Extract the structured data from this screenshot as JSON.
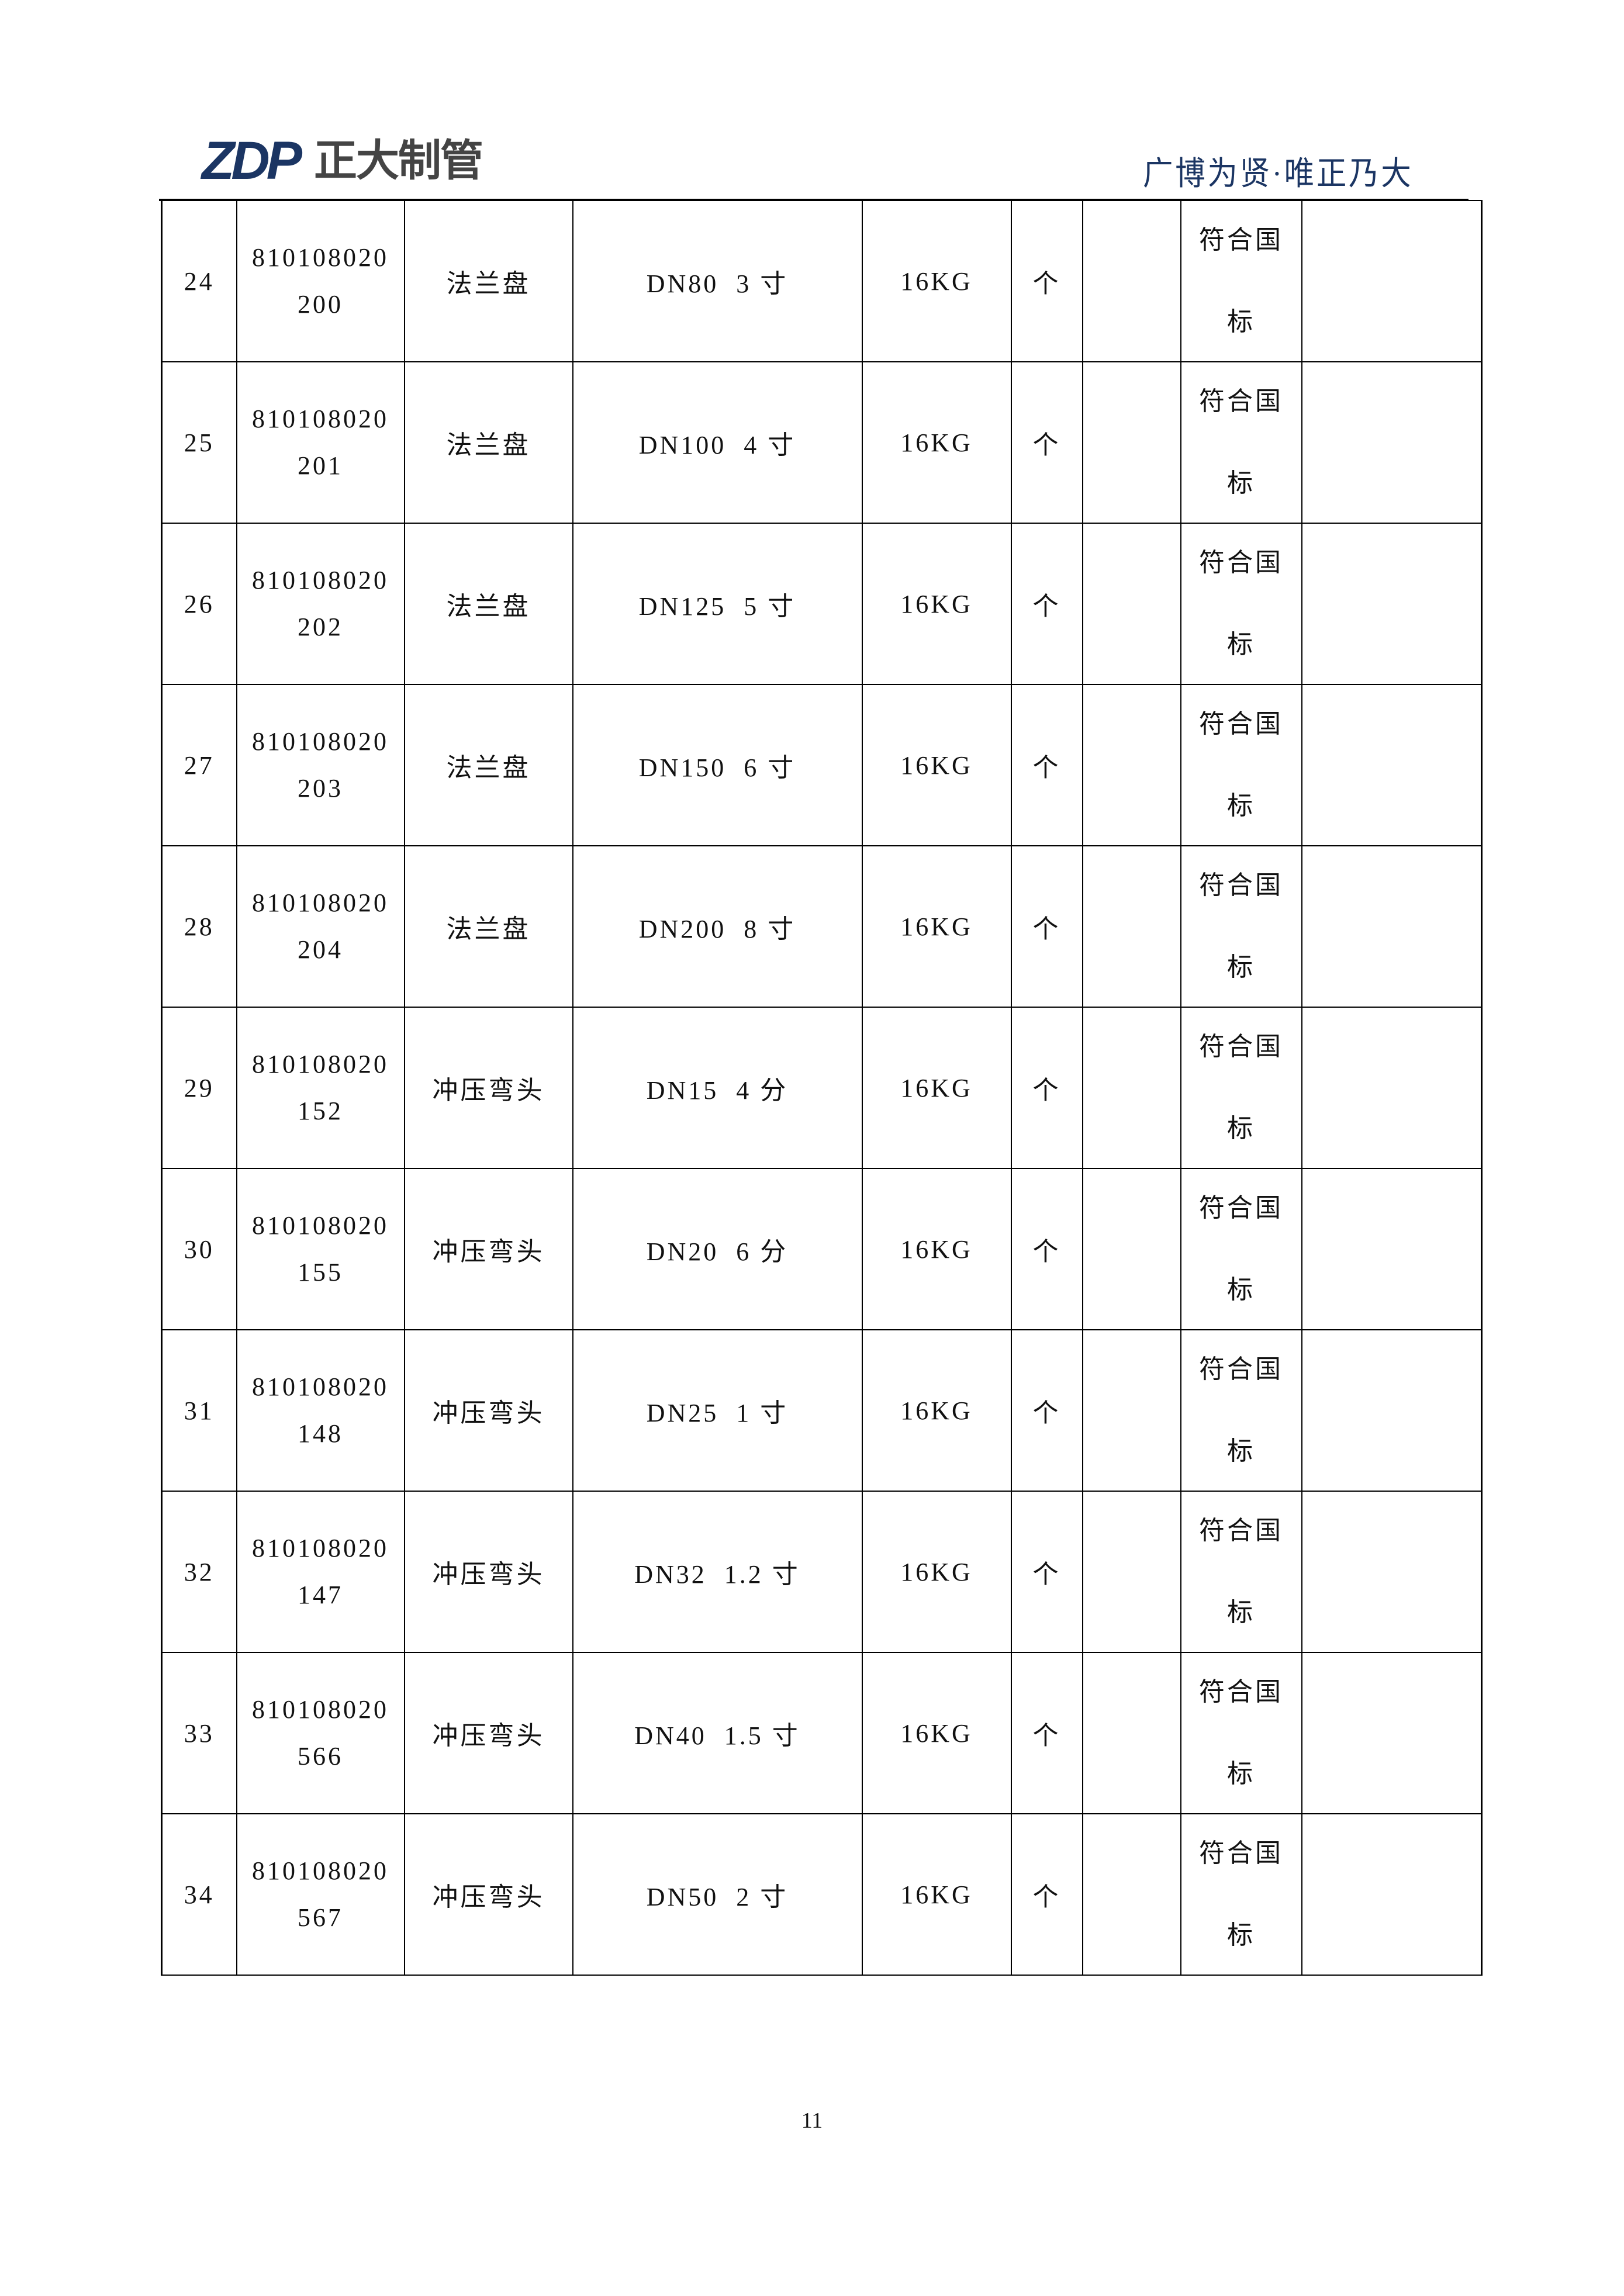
{
  "header": {
    "logo_mark": "ZDP",
    "logo_text": "正大制管",
    "slogan": "广博为贤·唯正乃大",
    "brand_color": "#1b3563"
  },
  "table": {
    "rows": [
      {
        "no": "24",
        "code_1": "810108020",
        "code_2": "200",
        "name": "法兰盘",
        "spec": "DN80  3 寸",
        "pressure": "16KG",
        "unit": "个",
        "qty": "",
        "std_1": "符合国",
        "std_2": "标",
        "note": ""
      },
      {
        "no": "25",
        "code_1": "810108020",
        "code_2": "201",
        "name": "法兰盘",
        "spec": "DN100  4 寸",
        "pressure": "16KG",
        "unit": "个",
        "qty": "",
        "std_1": "符合国",
        "std_2": "标",
        "note": ""
      },
      {
        "no": "26",
        "code_1": "810108020",
        "code_2": "202",
        "name": "法兰盘",
        "spec": "DN125  5 寸",
        "pressure": "16KG",
        "unit": "个",
        "qty": "",
        "std_1": "符合国",
        "std_2": "标",
        "note": ""
      },
      {
        "no": "27",
        "code_1": "810108020",
        "code_2": "203",
        "name": "法兰盘",
        "spec": "DN150  6 寸",
        "pressure": "16KG",
        "unit": "个",
        "qty": "",
        "std_1": "符合国",
        "std_2": "标",
        "note": ""
      },
      {
        "no": "28",
        "code_1": "810108020",
        "code_2": "204",
        "name": "法兰盘",
        "spec": "DN200  8 寸",
        "pressure": "16KG",
        "unit": "个",
        "qty": "",
        "std_1": "符合国",
        "std_2": "标",
        "note": ""
      },
      {
        "no": "29",
        "code_1": "810108020",
        "code_2": "152",
        "name": "冲压弯头",
        "spec": "DN15  4 分",
        "pressure": "16KG",
        "unit": "个",
        "qty": "",
        "std_1": "符合国",
        "std_2": "标",
        "note": ""
      },
      {
        "no": "30",
        "code_1": "810108020",
        "code_2": "155",
        "name": "冲压弯头",
        "spec": "DN20  6 分",
        "pressure": "16KG",
        "unit": "个",
        "qty": "",
        "std_1": "符合国",
        "std_2": "标",
        "note": ""
      },
      {
        "no": "31",
        "code_1": "810108020",
        "code_2": "148",
        "name": "冲压弯头",
        "spec": "DN25  1 寸",
        "pressure": "16KG",
        "unit": "个",
        "qty": "",
        "std_1": "符合国",
        "std_2": "标",
        "note": ""
      },
      {
        "no": "32",
        "code_1": "810108020",
        "code_2": "147",
        "name": "冲压弯头",
        "spec": "DN32  1.2 寸",
        "pressure": "16KG",
        "unit": "个",
        "qty": "",
        "std_1": "符合国",
        "std_2": "标",
        "note": ""
      },
      {
        "no": "33",
        "code_1": "810108020",
        "code_2": "566",
        "name": "冲压弯头",
        "spec": "DN40  1.5 寸",
        "pressure": "16KG",
        "unit": "个",
        "qty": "",
        "std_1": "符合国",
        "std_2": "标",
        "note": ""
      },
      {
        "no": "34",
        "code_1": "810108020",
        "code_2": "567",
        "name": "冲压弯头",
        "spec": "DN50  2 寸",
        "pressure": "16KG",
        "unit": "个",
        "qty": "",
        "std_1": "符合国",
        "std_2": "标",
        "note": ""
      }
    ]
  },
  "footer": {
    "page_number": "11"
  }
}
